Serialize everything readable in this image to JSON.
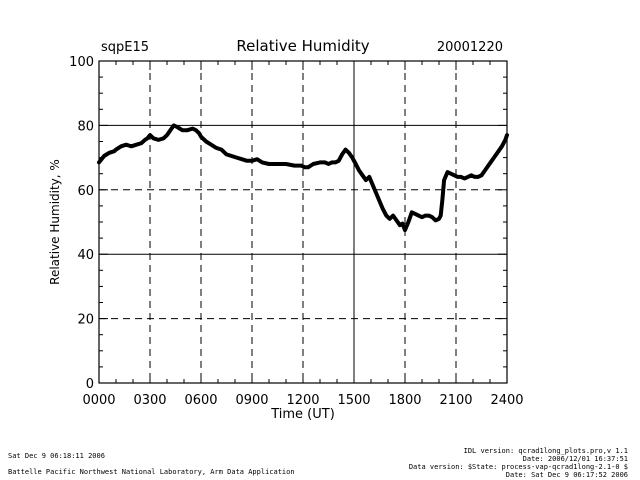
{
  "chart_data": {
    "type": "line",
    "site": "sqpE15",
    "title": "Relative Humidity",
    "date": "20001220",
    "xlabel": "Time (UT)",
    "ylabel": "Relative Humidity, %",
    "xlim": [
      0,
      24
    ],
    "ylim": [
      0,
      100
    ],
    "x_tick_labels": [
      "0000",
      "0300",
      "0600",
      "0900",
      "1200",
      "1500",
      "1800",
      "2100",
      "2400"
    ],
    "x_tick_values": [
      0,
      3,
      6,
      9,
      12,
      15,
      18,
      21,
      24
    ],
    "y_tick_labels": [
      "0",
      "20",
      "40",
      "60",
      "80",
      "100"
    ],
    "y_tick_values": [
      0,
      20,
      40,
      60,
      80,
      100
    ],
    "grid_dashed_y": [
      20,
      60
    ],
    "grid_solid_y": [
      40,
      80
    ],
    "grid_dashed_x": [
      3,
      6,
      9,
      12,
      18,
      21
    ],
    "grid_solid_x": [
      15
    ],
    "series": [
      {
        "name": "Relative Humidity",
        "x": [
          0,
          0.3,
          0.6,
          0.9,
          1.0,
          1.3,
          1.6,
          1.9,
          2.2,
          2.5,
          2.7,
          2.85,
          3.0,
          3.2,
          3.5,
          3.8,
          4.0,
          4.2,
          4.4,
          4.6,
          4.9,
          5.2,
          5.5,
          5.7,
          5.9,
          6.0,
          6.3,
          6.6,
          6.9,
          7.2,
          7.5,
          7.8,
          8.1,
          8.4,
          8.7,
          9.0,
          9.3,
          9.6,
          10.0,
          10.5,
          11.0,
          11.5,
          11.9,
          12.1,
          12.3,
          12.6,
          13.0,
          13.3,
          13.5,
          13.7,
          13.9,
          14.1,
          14.3,
          14.5,
          14.7,
          14.9,
          15.1,
          15.3,
          15.5,
          15.7,
          15.9,
          16.1,
          16.3,
          16.5,
          16.7,
          16.9,
          17.1,
          17.3,
          17.5,
          17.7,
          17.85,
          18.0,
          18.2,
          18.4,
          18.6,
          18.8,
          19.0,
          19.2,
          19.4,
          19.6,
          19.8,
          20.0,
          20.1,
          20.2,
          20.3,
          20.5,
          20.7,
          20.9,
          21.1,
          21.3,
          21.5,
          21.7,
          21.9,
          22.1,
          22.3,
          22.5,
          22.7,
          22.9,
          23.1,
          23.3,
          23.5,
          23.7,
          23.9,
          24.0
        ],
        "values": [
          68.5,
          70.5,
          71.5,
          72,
          72.5,
          73.5,
          74,
          73.5,
          74,
          74.5,
          75.5,
          76,
          77,
          76,
          75.5,
          76,
          77,
          78.5,
          80,
          79.5,
          78.5,
          78.5,
          79,
          78.5,
          77.5,
          76.5,
          75,
          74,
          73,
          72.5,
          71,
          70.5,
          70,
          69.5,
          69,
          69,
          69.5,
          68.5,
          68,
          68,
          68,
          67.5,
          67.5,
          67,
          67,
          68,
          68.5,
          68.5,
          68,
          68.5,
          68.5,
          69,
          71,
          72.5,
          71.5,
          70,
          68,
          66,
          64.5,
          63,
          64,
          61.5,
          59,
          56.5,
          54,
          52,
          51,
          52,
          50.5,
          49,
          49.5,
          47.5,
          50,
          53,
          52.5,
          52,
          51.5,
          52,
          52,
          51.5,
          50.5,
          51,
          52,
          57,
          63,
          65.5,
          65,
          64.5,
          64,
          64,
          63.5,
          64,
          64.5,
          64,
          64,
          64.5,
          66,
          67.5,
          69,
          70.5,
          72,
          73.5,
          75.5,
          77
        ]
      }
    ]
  },
  "footer": {
    "left_line1": "Sat Dec  9 06:18:11 2006",
    "left_line2": "Battelle Pacific Northwest National Laboratory, Arm Data Application",
    "right_line1": "IDL version: qcrad1long_plots.pro,v 1.1",
    "right_line2": "Date: 2006/12/01 16:37:51",
    "right_line3": "Data version: $State: process-vap-qcrad1long-2.1-0 $",
    "right_line4": "Date: Sat Dec  9 06:17:52 2006"
  }
}
